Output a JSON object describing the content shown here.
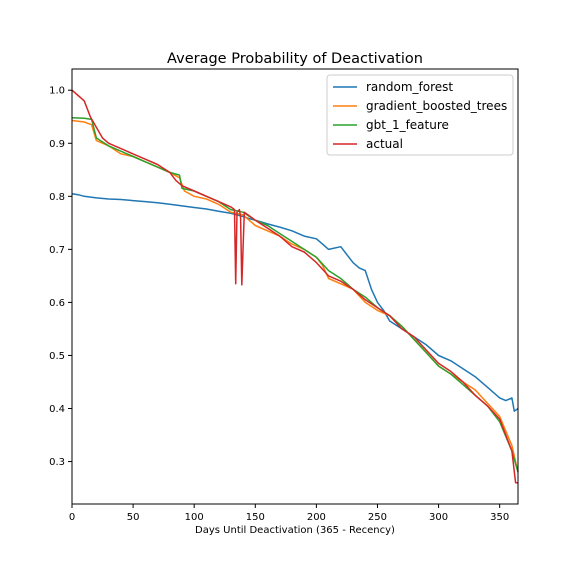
{
  "chart_data": {
    "type": "line",
    "title": "Average Probability of Deactivation",
    "xlabel": "Days Until Deactivation (365 - Recency)",
    "ylabel": "",
    "xlim": [
      0,
      365
    ],
    "ylim": [
      0.22,
      1.04
    ],
    "xticks": [
      0,
      50,
      100,
      150,
      200,
      250,
      300,
      350
    ],
    "yticks": [
      0.3,
      0.4,
      0.5,
      0.6,
      0.7,
      0.8,
      0.9,
      1.0
    ],
    "grid": false,
    "legend_position": "top-right",
    "series": [
      {
        "name": "random_forest",
        "color": "#1f77b4",
        "x": [
          0,
          5,
          10,
          20,
          30,
          40,
          50,
          60,
          70,
          80,
          90,
          100,
          110,
          120,
          130,
          140,
          145,
          150,
          160,
          170,
          180,
          190,
          200,
          205,
          210,
          220,
          225,
          230,
          235,
          240,
          245,
          250,
          255,
          260,
          270,
          280,
          290,
          300,
          310,
          320,
          330,
          340,
          350,
          355,
          360,
          362,
          365
        ],
        "y": [
          0.805,
          0.803,
          0.8,
          0.797,
          0.795,
          0.794,
          0.792,
          0.79,
          0.788,
          0.785,
          0.782,
          0.779,
          0.776,
          0.772,
          0.768,
          0.762,
          0.758,
          0.755,
          0.748,
          0.742,
          0.735,
          0.725,
          0.72,
          0.71,
          0.7,
          0.705,
          0.69,
          0.675,
          0.665,
          0.66,
          0.625,
          0.6,
          0.585,
          0.565,
          0.55,
          0.535,
          0.52,
          0.5,
          0.49,
          0.475,
          0.46,
          0.44,
          0.42,
          0.415,
          0.42,
          0.395,
          0.4
        ]
      },
      {
        "name": "gradient_boosted_trees",
        "color": "#ff7f0e",
        "x": [
          0,
          10,
          16,
          20,
          30,
          40,
          50,
          60,
          70,
          80,
          88,
          92,
          100,
          110,
          120,
          130,
          140,
          150,
          160,
          170,
          180,
          190,
          200,
          205,
          210,
          220,
          230,
          240,
          250,
          255,
          260,
          270,
          280,
          290,
          300,
          310,
          320,
          330,
          340,
          350,
          360,
          365
        ],
        "y": [
          0.943,
          0.94,
          0.935,
          0.905,
          0.895,
          0.88,
          0.875,
          0.865,
          0.855,
          0.845,
          0.835,
          0.81,
          0.8,
          0.795,
          0.785,
          0.77,
          0.765,
          0.745,
          0.735,
          0.725,
          0.71,
          0.7,
          0.685,
          0.67,
          0.645,
          0.635,
          0.625,
          0.6,
          0.585,
          0.58,
          0.575,
          0.555,
          0.53,
          0.505,
          0.48,
          0.465,
          0.45,
          0.435,
          0.41,
          0.385,
          0.33,
          0.28
        ]
      },
      {
        "name": "gbt_1_feature",
        "color": "#2ca02c",
        "x": [
          0,
          10,
          16,
          20,
          30,
          40,
          50,
          60,
          70,
          80,
          88,
          90,
          100,
          110,
          120,
          130,
          140,
          150,
          160,
          170,
          180,
          190,
          200,
          210,
          220,
          230,
          240,
          250,
          260,
          270,
          280,
          290,
          300,
          310,
          320,
          330,
          340,
          350,
          360,
          365
        ],
        "y": [
          0.948,
          0.947,
          0.945,
          0.91,
          0.895,
          0.885,
          0.875,
          0.865,
          0.855,
          0.845,
          0.84,
          0.815,
          0.81,
          0.8,
          0.79,
          0.775,
          0.77,
          0.755,
          0.745,
          0.73,
          0.715,
          0.7,
          0.685,
          0.66,
          0.645,
          0.625,
          0.61,
          0.59,
          0.575,
          0.555,
          0.53,
          0.505,
          0.48,
          0.465,
          0.445,
          0.425,
          0.405,
          0.375,
          0.32,
          0.28
        ]
      },
      {
        "name": "actual",
        "color": "#d62728",
        "x": [
          0,
          5,
          10,
          15,
          20,
          25,
          30,
          40,
          50,
          60,
          70,
          80,
          85,
          90,
          100,
          110,
          120,
          130,
          133,
          134,
          135,
          137,
          138,
          139,
          141,
          150,
          160,
          170,
          180,
          190,
          200,
          210,
          220,
          230,
          240,
          250,
          260,
          270,
          280,
          290,
          300,
          310,
          320,
          330,
          340,
          350,
          360,
          363,
          365
        ],
        "y": [
          1.0,
          0.99,
          0.98,
          0.95,
          0.93,
          0.91,
          0.9,
          0.89,
          0.88,
          0.87,
          0.86,
          0.845,
          0.83,
          0.82,
          0.81,
          0.8,
          0.79,
          0.78,
          0.775,
          0.635,
          0.77,
          0.775,
          0.76,
          0.633,
          0.77,
          0.755,
          0.74,
          0.725,
          0.705,
          0.695,
          0.675,
          0.65,
          0.64,
          0.625,
          0.605,
          0.59,
          0.575,
          0.55,
          0.535,
          0.51,
          0.485,
          0.47,
          0.45,
          0.425,
          0.405,
          0.38,
          0.32,
          0.26,
          0.26
        ]
      }
    ]
  }
}
